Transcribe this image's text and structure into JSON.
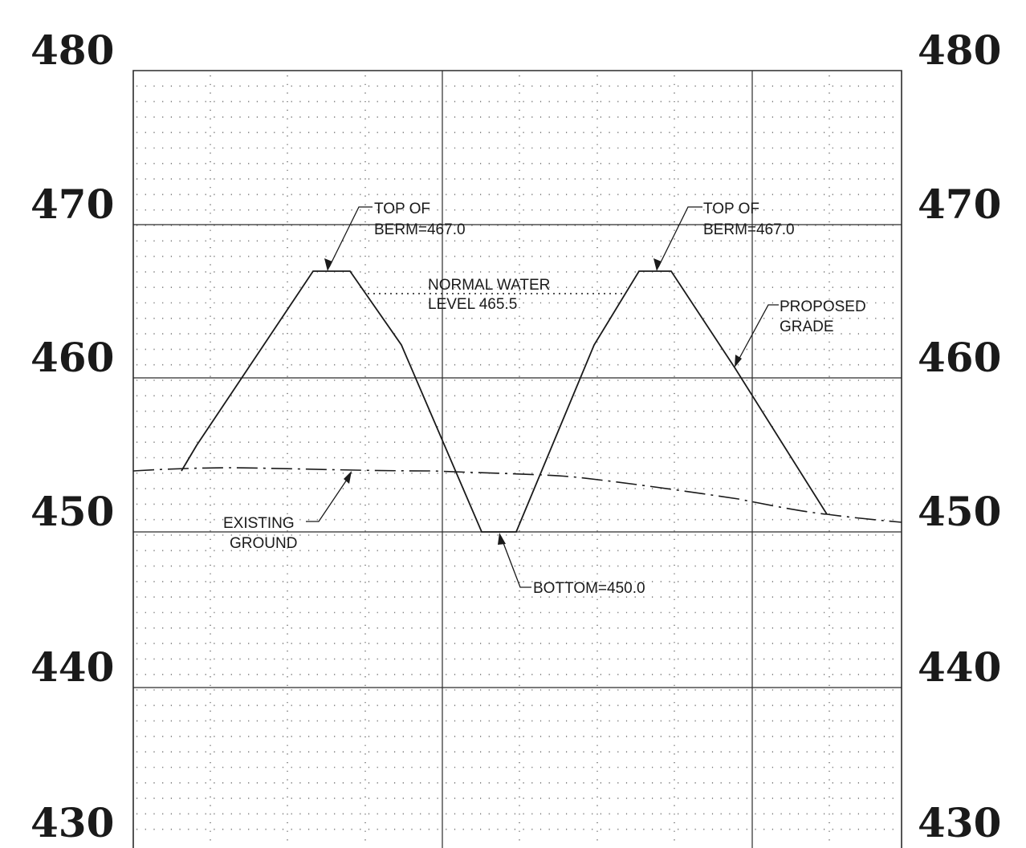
{
  "elevation_labels": {
    "left": [
      "480",
      "470",
      "460",
      "450",
      "440",
      "430"
    ],
    "right": [
      "480",
      "470",
      "460",
      "450",
      "440",
      "430"
    ]
  },
  "callouts": {
    "top_of_berm_left": {
      "line1": "TOP OF",
      "line2": "BERM=467.0"
    },
    "top_of_berm_right": {
      "line1": "TOP OF",
      "line2": "BERM=467.0"
    },
    "normal_water_level": {
      "line1": "NORMAL WATER",
      "line2": "LEVEL 465.5"
    },
    "proposed_grade": {
      "line1": "PROPOSED",
      "line2": "GRADE"
    },
    "existing_ground": {
      "line1": "EXISTING",
      "line2": "GROUND"
    },
    "bottom": {
      "text": "BOTTOM=450.0"
    }
  },
  "profile_data": {
    "elevation_range": [
      430,
      480
    ],
    "major_interval": 10,
    "top_of_berm": 467.0,
    "normal_water_level": 465.5,
    "bottom": 450.0,
    "proposed_grade": [
      [
        0.06,
        452.0
      ],
      [
        0.08,
        453.5
      ],
      [
        0.24,
        467.0
      ],
      [
        0.28,
        467.0
      ],
      [
        0.35,
        461.0
      ],
      [
        0.455,
        450.0
      ],
      [
        0.5,
        450.0
      ],
      [
        0.6,
        461.0
      ],
      [
        0.665,
        467.0
      ],
      [
        0.703,
        467.0
      ],
      [
        0.81,
        455.0
      ],
      [
        0.905,
        450.6
      ]
    ],
    "existing_ground": [
      [
        0.0,
        452.0
      ],
      [
        0.13,
        452.1
      ],
      [
        0.38,
        452.0
      ],
      [
        0.56,
        451.7
      ],
      [
        0.66,
        451.0
      ],
      [
        0.78,
        450.0
      ],
      [
        0.905,
        450.6
      ],
      [
        1.0,
        450.3
      ]
    ]
  }
}
